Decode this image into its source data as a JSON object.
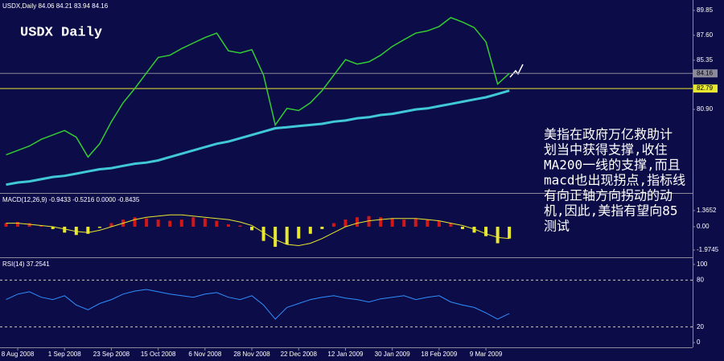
{
  "chart_data": [
    {
      "type": "line",
      "header": "USDX,Daily 84.06 84.21 83.94 84.16",
      "title": "USDX Daily",
      "annotation_lines": [
        "美指在政府万亿救助计",
        "划当中获得支撑,收住",
        "MA200一线的支撑,而且",
        "macd也出现拐点,指标线",
        "有向正轴方向拐动的动",
        "机,因此,美指有望向85",
        "测试"
      ],
      "categories": [
        null,
        "8 Aug 2008",
        null,
        null,
        null,
        "1 Sep 2008",
        null,
        null,
        null,
        "23 Sep 2008",
        null,
        null,
        null,
        "15 Oct 2008",
        null,
        null,
        null,
        "6 Nov 2008",
        null,
        null,
        null,
        "28 Nov 2008",
        null,
        null,
        null,
        "22 Dec 2008",
        null,
        null,
        null,
        "12 Jan 2009",
        null,
        null,
        null,
        "30 Jan 2009",
        null,
        null,
        null,
        "18 Feb 2009",
        null,
        null,
        null,
        "9 Mar 2009",
        null,
        null
      ],
      "series": [
        {
          "color": "#33cc33",
          "width": 1.5,
          "values": [
            76.8,
            77.2,
            77.6,
            78.2,
            78.6,
            79.0,
            78.4,
            76.6,
            77.8,
            79.8,
            81.5,
            82.8,
            84.2,
            85.6,
            85.8,
            86.4,
            86.9,
            87.4,
            87.8,
            86.2,
            86.0,
            86.3,
            84.0,
            79.5,
            81.0,
            80.8,
            81.5,
            82.6,
            84.0,
            85.4,
            85.0,
            85.2,
            85.8,
            86.6,
            87.2,
            87.8,
            88.0,
            88.4,
            89.2,
            88.8,
            88.3,
            87.0,
            83.2,
            84.16
          ]
        },
        {
          "color": "#40c8d8",
          "width": 3,
          "values": [
            74.1,
            74.3,
            74.4,
            74.6,
            74.8,
            74.9,
            75.1,
            75.3,
            75.5,
            75.6,
            75.8,
            76.0,
            76.1,
            76.3,
            76.6,
            76.9,
            77.2,
            77.5,
            77.8,
            78.0,
            78.3,
            78.6,
            78.9,
            79.2,
            79.3,
            79.4,
            79.5,
            79.6,
            79.8,
            79.9,
            80.1,
            80.2,
            80.4,
            80.5,
            80.7,
            80.9,
            81.0,
            81.2,
            81.4,
            81.6,
            81.8,
            82.0,
            82.3,
            82.6
          ]
        }
      ],
      "ylim": [
        73.5,
        90.79
      ],
      "yticks": [
        89.85,
        {
          "value": 87.6,
          "label": "87.60"
        },
        85.35,
        {
          "value": 80.9,
          "label": "80.90"
        }
      ],
      "levels": [
        {
          "value": 84.16,
          "color": "#8a8a9a",
          "box": "#8a8a9a"
        },
        {
          "value": 82.79,
          "color": "#e8e830",
          "box": "#e8e830"
        }
      ]
    },
    {
      "type": "bar",
      "title": "MACD(12,26,9) -0.9433 -0.5216 0.0000 -0.8435",
      "series": [
        {
          "type": "bar",
          "color_positive": "#d01818",
          "color_negative": "#e8e830",
          "values": [
            0.3,
            0.4,
            0.3,
            0.1,
            -0.2,
            -0.5,
            -0.7,
            -0.6,
            -0.1,
            0.3,
            0.6,
            0.8,
            0.7,
            0.6,
            0.5,
            0.6,
            0.8,
            0.7,
            0.5,
            0.2,
            0.1,
            -0.3,
            -1.2,
            -1.7,
            -1.5,
            -1.0,
            -0.6,
            -0.2,
            0.3,
            0.6,
            0.8,
            0.9,
            0.8,
            0.7,
            0.6,
            0.7,
            0.6,
            0.5,
            0.3,
            -0.2,
            -0.5,
            -0.8,
            -1.4,
            -1.0
          ]
        },
        {
          "type": "line",
          "color": "#e8e830",
          "width": 1,
          "values": [
            0.3,
            0.3,
            0.2,
            0.1,
            0,
            -0.2,
            -0.4,
            -0.5,
            -0.3,
            0,
            0.3,
            0.6,
            0.8,
            0.9,
            1.0,
            1.0,
            0.9,
            0.8,
            0.7,
            0.6,
            0.4,
            0.1,
            -0.5,
            -1.1,
            -1.5,
            -1.6,
            -1.4,
            -1.0,
            -0.5,
            0,
            0.3,
            0.5,
            0.6,
            0.7,
            0.7,
            0.7,
            0.6,
            0.5,
            0.3,
            0.1,
            -0.2,
            -0.6,
            -0.9,
            -1.0
          ]
        }
      ],
      "ylim": [
        -2.45,
        2.65
      ],
      "yticks": [
        1.3652,
        {
          "value": 0,
          "label": "0.00"
        },
        -1.9745
      ]
    },
    {
      "type": "line",
      "title": "RSI(14) 37.2541",
      "series": [
        {
          "color": "#2f8fff",
          "width": 1,
          "values": [
            55,
            62,
            65,
            58,
            55,
            60,
            48,
            42,
            50,
            55,
            62,
            66,
            68,
            65,
            62,
            60,
            58,
            62,
            64,
            58,
            55,
            60,
            48,
            30,
            45,
            50,
            55,
            58,
            60,
            57,
            55,
            52,
            56,
            58,
            60,
            55,
            58,
            60,
            52,
            48,
            45,
            38,
            30,
            37.2541
          ]
        }
      ],
      "ylim": [
        -6.1,
        106.1
      ],
      "yticks": [
        100,
        0
      ],
      "levels": [
        {
          "value": 80,
          "color": "#c8c8c8",
          "dash": "3,3"
        },
        {
          "value": 20,
          "color": "#c8c8c8",
          "dash": "3,3"
        }
      ]
    }
  ]
}
